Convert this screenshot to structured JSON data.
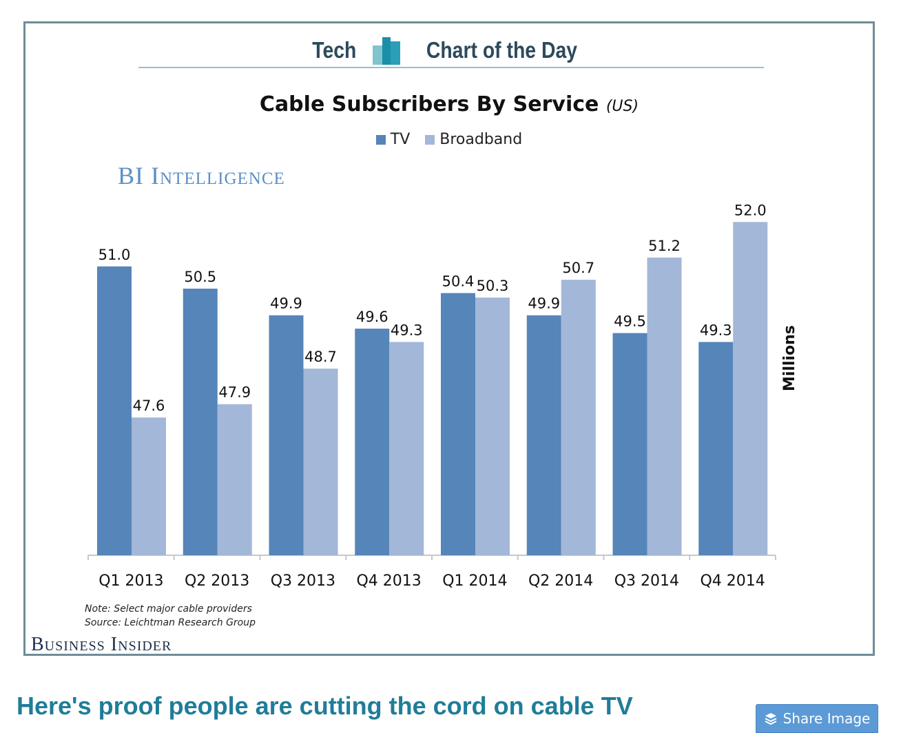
{
  "banner": {
    "left_text": "Tech",
    "right_text": "Chart of the Day"
  },
  "bi_logo": "BI Intelligence",
  "brand": "Business Insider",
  "note_line1": "Note: Select major cable providers",
  "note_line2": "Source: Leichtman Research Group",
  "headline": "Here's proof people are cutting the cord on cable TV",
  "share_button": {
    "label": "Share Image",
    "icon": "layers-icon"
  },
  "colors": {
    "tv": "#5585b9",
    "broadband": "#a3b7d9",
    "frame": "#6e8c96",
    "headline": "#1f7d98"
  },
  "chart_data": {
    "type": "bar",
    "title": "Cable Subscribers By Service",
    "subtitle": "(US)",
    "xlabel": "",
    "ylabel": "Millions",
    "legend_position": "top-center",
    "grid": false,
    "categories": [
      "Q1 2013",
      "Q2 2013",
      "Q3 2013",
      "Q4 2013",
      "Q1 2014",
      "Q2 2014",
      "Q3 2014",
      "Q4 2014"
    ],
    "series": [
      {
        "name": "TV",
        "values": [
          51.0,
          50.5,
          49.9,
          49.6,
          50.4,
          49.9,
          49.5,
          49.3
        ]
      },
      {
        "name": "Broadband",
        "values": [
          47.6,
          47.9,
          48.7,
          49.3,
          50.3,
          50.7,
          51.2,
          52.0
        ]
      }
    ],
    "value_labels": {
      "TV": [
        "51.0",
        "50.5",
        "49.9",
        "49.6",
        "50.4",
        "49.9",
        "49.5",
        "49.3"
      ],
      "Broadband": [
        "47.6",
        "47.9",
        "48.7",
        "49.3",
        "50.3",
        "50.7",
        "51.2",
        "52.0"
      ]
    },
    "ylim": [
      44.5,
      52.5
    ]
  }
}
